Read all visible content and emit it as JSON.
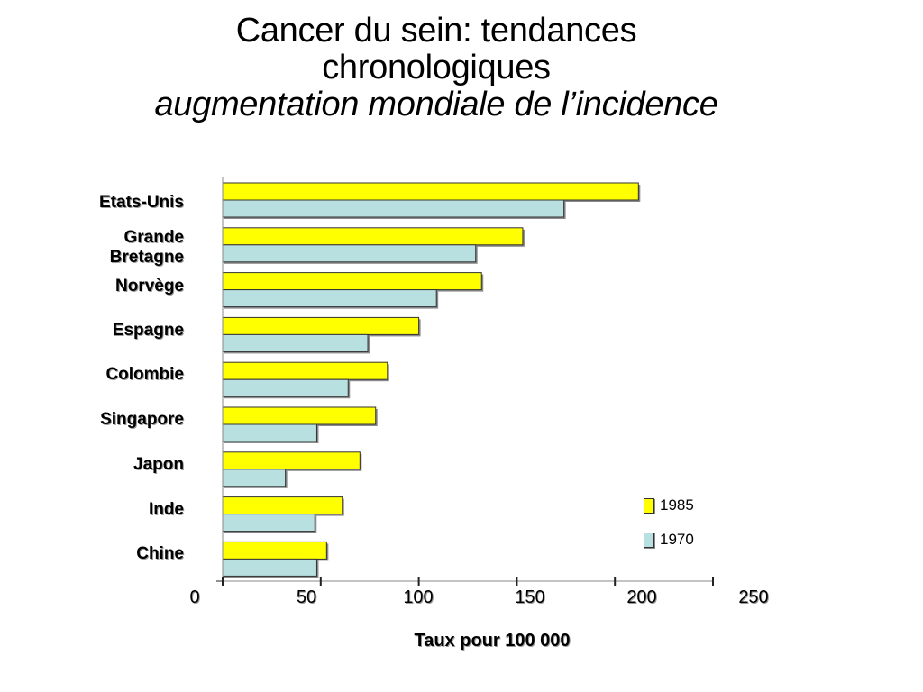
{
  "title": {
    "line1": "Cancer du sein: tendances",
    "line2": "chronologiques",
    "line3": "augmentation mondiale de l’incidence"
  },
  "chart_data": {
    "type": "bar",
    "orientation": "horizontal",
    "categories": [
      "Etats-Unis",
      "Grande Bretagne",
      "Norvège",
      "Espagne",
      "Colombie",
      "Singapore",
      "Japon",
      "Inde",
      "Chine"
    ],
    "series": [
      {
        "name": "1985",
        "color": "#ffff00",
        "values": [
          212,
          153,
          132,
          100,
          84,
          78,
          70,
          61,
          53
        ]
      },
      {
        "name": "1970",
        "color": "#b8e0e0",
        "values": [
          174,
          129,
          109,
          74,
          64,
          48,
          32,
          47,
          48
        ]
      }
    ],
    "xlabel": "Taux pour 100 000",
    "xlim": [
      0,
      250
    ],
    "xticks": [
      "0",
      "50",
      "100",
      "150",
      "200",
      "250"
    ],
    "grid": false,
    "legend": "bottom-right"
  }
}
